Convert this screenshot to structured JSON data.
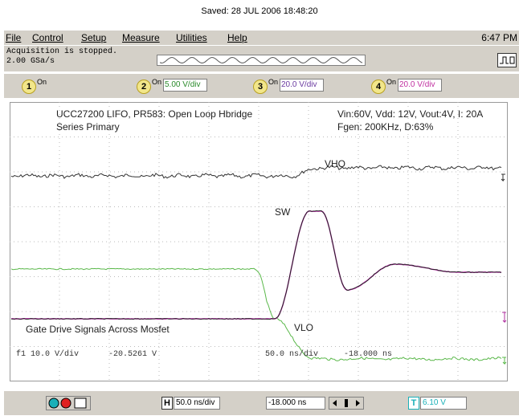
{
  "header": {
    "saved": "Saved:  28 JUL 2006  18:48:20"
  },
  "menu": {
    "items": [
      "File",
      "Control",
      "Setup",
      "Measure",
      "Utilities",
      "Help"
    ],
    "clock": "6:47 PM"
  },
  "status": {
    "lines": [
      "Acquisition is stopped.",
      "2.00 GSa/s"
    ]
  },
  "channels": [
    {
      "number": "1",
      "on": "On"
    },
    {
      "number": "2",
      "on": "On",
      "scale": "5.00 V/div"
    },
    {
      "number": "3",
      "on": "On",
      "scale": "20.0 V/div"
    },
    {
      "number": "4",
      "on": "On",
      "scale": "20.0 V/div"
    }
  ],
  "screen": {
    "title": "UCC27200 LIFO, PR583: Open Loop Hbridge",
    "subtitle": "Series Primary",
    "conditions": "Vin:60V, Vdd: 12V, Vout:4V, I: 20A",
    "fgen": "Fgen: 200KHz, D:63%",
    "labels": {
      "vho": "VHO",
      "sw": "SW",
      "vlo": "VLO"
    },
    "caption": "Gate Drive Signals Across Mosfet",
    "readouts": [
      "f1 10.0 V/div",
      "-20.5261 V",
      "50.0 ns/div",
      "-18.000 ns"
    ]
  },
  "toolbar": {
    "h": "H",
    "timebase": "50.0 ns/div",
    "delay": "-18.000 ns",
    "t": "T",
    "trigger_level": "6.10 V"
  }
}
